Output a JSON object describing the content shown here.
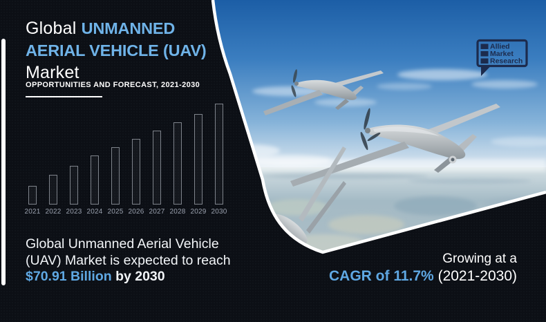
{
  "brand": {
    "logo_lines": [
      "Allied",
      "Market",
      "Research"
    ]
  },
  "header": {
    "title_prefix": "Global",
    "title_highlight_1": "UNMANNED",
    "title_highlight_2": "AERIAL VEHICLE (UAV)",
    "title_suffix": "Market",
    "subtitle": "OPPORTUNITIES AND FORECAST, 2021-2030"
  },
  "chart_data": {
    "type": "bar",
    "title": "",
    "categories": [
      "2021",
      "2022",
      "2023",
      "2024",
      "2025",
      "2026",
      "2027",
      "2028",
      "2029",
      "2030"
    ],
    "values": [
      27,
      43,
      56,
      71,
      83,
      95,
      107,
      119,
      131,
      146
    ],
    "values_unit": "relative bar height in px (no value axis shown in image)",
    "xlabel": "",
    "ylabel": "",
    "legend": [],
    "grid": false,
    "annotations": [
      "$70.91 Billion by 2030",
      "CAGR of 11.7% (2021-2030)"
    ]
  },
  "summary": {
    "line1": "Global Unmanned Aerial Vehicle",
    "line2": "(UAV) Market is expected to reach",
    "highlight": "$70.91 Billion",
    "suffix": "by 2030"
  },
  "growth": {
    "line1": "Growing at a",
    "highlight": "CAGR of 11.7%",
    "period": "(2021-2030)"
  },
  "colors": {
    "accent_blue": "#6FB3E8",
    "stat_blue": "#5FA8E3",
    "panel_bg": "#0C0F15",
    "logo_navy": "#1C2B4D",
    "bar_outline": "#D6DCE6"
  }
}
